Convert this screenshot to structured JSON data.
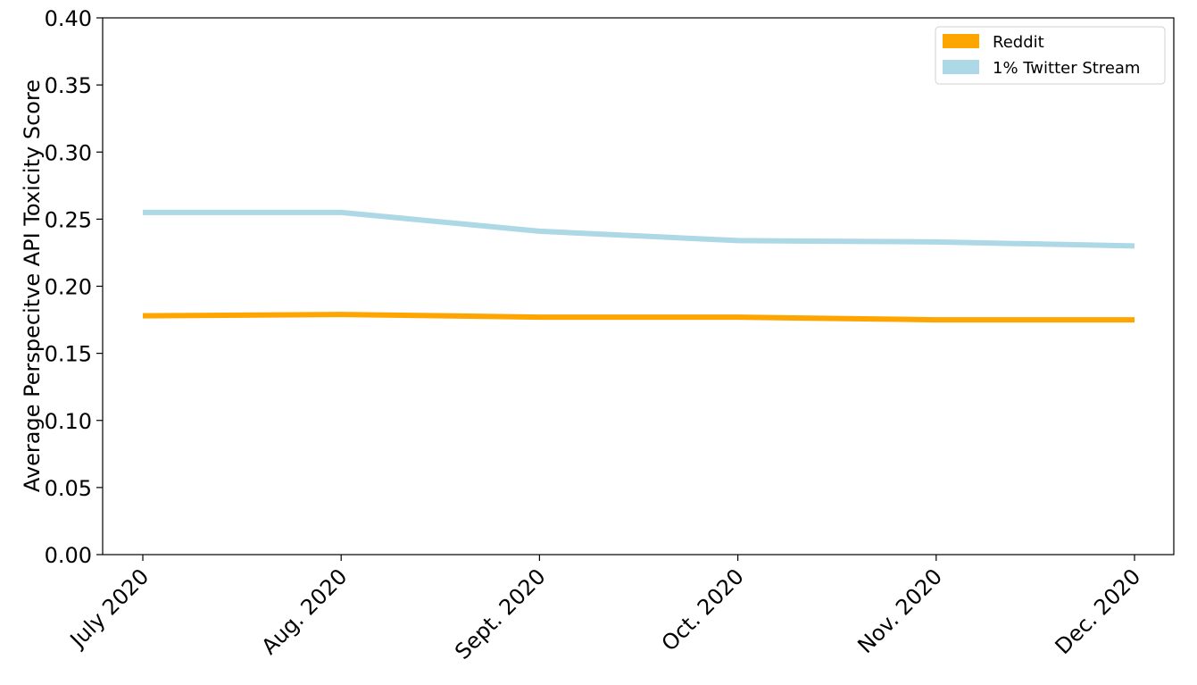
{
  "chart_data": {
    "type": "line",
    "categories": [
      "July 2020",
      "Aug. 2020",
      "Sept. 2020",
      "Oct. 2020",
      "Nov. 2020",
      "Dec. 2020"
    ],
    "series": [
      {
        "name": "Reddit",
        "color": "#ffa500",
        "values": [
          0.178,
          0.179,
          0.177,
          0.177,
          0.175,
          0.175
        ]
      },
      {
        "name": "1% Twitter Stream",
        "color": "#add8e6",
        "values": [
          0.255,
          0.255,
          0.241,
          0.234,
          0.233,
          0.23
        ]
      }
    ],
    "ylabel": "Average Perspecitve API Toxicity Score",
    "ylim": [
      0,
      0.4
    ],
    "yticks": [
      "0.00",
      "0.05",
      "0.10",
      "0.15",
      "0.20",
      "0.25",
      "0.30",
      "0.35",
      "0.40"
    ],
    "grid": false,
    "legend_position": "top-right"
  }
}
